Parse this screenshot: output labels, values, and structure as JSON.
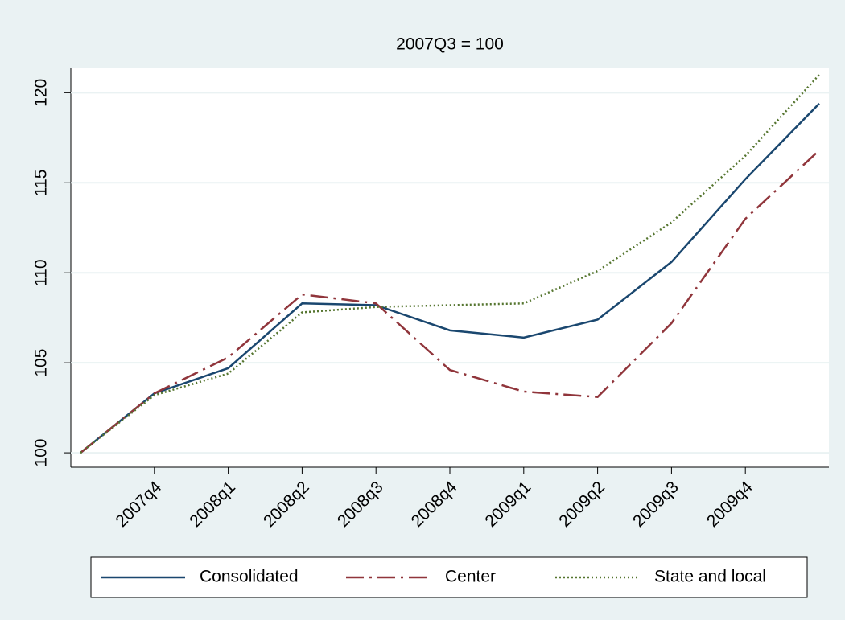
{
  "chart_data": {
    "type": "line",
    "title": "2007Q3 = 100",
    "categories": [
      null,
      "2007q4",
      "2008q1",
      "2008q2",
      "2008q3",
      "2008q4",
      "2009q1",
      "2009q2",
      "2009q3",
      "2009q4",
      null
    ],
    "series": [
      {
        "name": "Consolidated",
        "color": "#1a476f",
        "dash": "solid",
        "values": [
          100,
          103.3,
          104.7,
          108.3,
          108.2,
          106.8,
          106.4,
          107.4,
          110.6,
          115.2,
          119.4
        ]
      },
      {
        "name": "Center",
        "color": "#90353b",
        "dash": "dashdot",
        "values": [
          100,
          103.3,
          105.3,
          108.8,
          108.3,
          104.6,
          103.4,
          103.1,
          107.2,
          113.0,
          116.8
        ]
      },
      {
        "name": "State and local",
        "color": "#55752f",
        "dash": "dot",
        "values": [
          100,
          103.2,
          104.4,
          107.8,
          108.1,
          108.2,
          108.3,
          110.1,
          112.8,
          116.5,
          121.0
        ]
      }
    ],
    "ylim": [
      99.2,
      121.4
    ],
    "yticks": [
      100,
      105,
      110,
      115,
      120
    ],
    "grid": true,
    "legend": "bottom"
  }
}
